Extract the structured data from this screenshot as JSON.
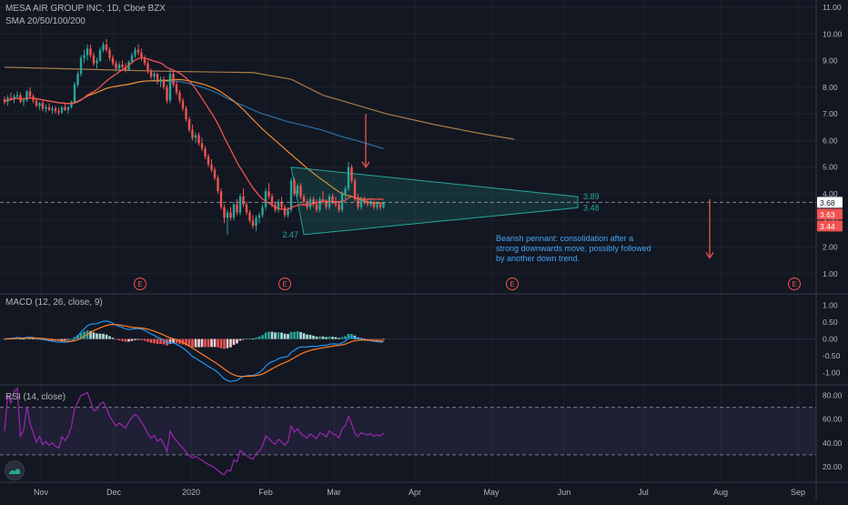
{
  "header": {
    "symbol_line": "MESA AIR GROUP INC, 1D, Cboe BZX",
    "sma_line": "SMA 20/50/100/200"
  },
  "colors": {
    "background": "#131722",
    "grid": "#1e222d",
    "up_candle": "#26a69a",
    "down_candle": "#ef5350",
    "sma20": "#ef5350",
    "sma50": "#f28c28",
    "sma100": "#2a6fa8",
    "sma200": "#b8864f",
    "pennant_fill": "#26a69a",
    "macd_line": "#2196f3",
    "signal_line": "#ff7f27",
    "rsi_line": "#9c27b0",
    "rsi_band": "#7e57c2",
    "annotation_text": "#42a5f5",
    "arrow": "#ef5350"
  },
  "price_labels": {
    "current": "3.68",
    "sma_a": "3.63",
    "sma_b": "3.44",
    "pennant_top": "3.89",
    "pennant_bottom": "3.48",
    "pennant_low_label": "2.47"
  },
  "annotation": {
    "line1": "Bearish pennant: consolidation after a",
    "line2": "strong downwards move, possibly followed",
    "line3": "by another down trend."
  },
  "earnings_marker": "E",
  "macd": {
    "label": "MACD (12, 26, close, 9)"
  },
  "rsi": {
    "label": "RSI (14, close)"
  },
  "chart_data": {
    "type": "candlestick",
    "x_labels": [
      "Nov",
      "Dec",
      "2020",
      "Feb",
      "Mar",
      "Apr",
      "May",
      "Jun",
      "Jul",
      "Aug",
      "Sep"
    ],
    "price_axis": [
      "11.00",
      "10.00",
      "9.00",
      "8.00",
      "7.00",
      "6.00",
      "5.00",
      "4.00",
      "3.00",
      "2.00",
      "1.00"
    ],
    "price_range": [
      0.45,
      11.0
    ],
    "ohlc": [
      [
        7.55,
        7.65,
        7.35,
        7.45
      ],
      [
        7.45,
        7.7,
        7.3,
        7.6
      ],
      [
        7.6,
        7.8,
        7.5,
        7.55
      ],
      [
        7.55,
        7.75,
        7.4,
        7.65
      ],
      [
        7.65,
        7.85,
        7.55,
        7.7
      ],
      [
        7.7,
        7.8,
        7.4,
        7.45
      ],
      [
        7.45,
        7.6,
        7.3,
        7.5
      ],
      [
        7.5,
        7.9,
        7.45,
        7.85
      ],
      [
        7.85,
        8.0,
        7.6,
        7.65
      ],
      [
        7.65,
        7.75,
        7.4,
        7.5
      ],
      [
        7.5,
        7.6,
        7.25,
        7.3
      ],
      [
        7.3,
        7.45,
        7.15,
        7.4
      ],
      [
        7.4,
        7.5,
        7.1,
        7.2
      ],
      [
        7.2,
        7.35,
        7.05,
        7.25
      ],
      [
        7.25,
        7.4,
        7.1,
        7.15
      ],
      [
        7.15,
        7.3,
        7.0,
        7.2
      ],
      [
        7.2,
        7.3,
        7.0,
        7.1
      ],
      [
        7.1,
        7.25,
        6.95,
        7.05
      ],
      [
        7.05,
        7.3,
        7.0,
        7.25
      ],
      [
        7.25,
        7.4,
        7.1,
        7.15
      ],
      [
        7.15,
        7.3,
        7.0,
        7.25
      ],
      [
        7.25,
        7.5,
        7.2,
        7.45
      ],
      [
        7.45,
        8.2,
        7.4,
        8.1
      ],
      [
        8.1,
        8.6,
        8.0,
        8.5
      ],
      [
        8.5,
        9.2,
        8.4,
        9.1
      ],
      [
        9.1,
        9.4,
        8.9,
        9.2
      ],
      [
        9.2,
        9.6,
        9.0,
        9.45
      ],
      [
        9.45,
        9.6,
        9.1,
        9.2
      ],
      [
        9.2,
        9.3,
        8.8,
        8.9
      ],
      [
        8.9,
        9.1,
        8.7,
        9.0
      ],
      [
        9.0,
        9.5,
        8.95,
        9.4
      ],
      [
        9.4,
        9.7,
        9.3,
        9.6
      ],
      [
        9.6,
        9.8,
        9.3,
        9.4
      ],
      [
        9.4,
        9.5,
        9.0,
        9.1
      ],
      [
        9.1,
        9.2,
        8.8,
        8.9
      ],
      [
        8.9,
        9.0,
        8.6,
        8.7
      ],
      [
        8.7,
        8.95,
        8.6,
        8.85
      ],
      [
        8.85,
        9.0,
        8.7,
        8.75
      ],
      [
        8.75,
        8.9,
        8.55,
        8.65
      ],
      [
        8.65,
        9.0,
        8.6,
        8.95
      ],
      [
        8.95,
        9.3,
        8.9,
        9.2
      ],
      [
        9.2,
        9.5,
        9.1,
        9.4
      ],
      [
        9.4,
        9.6,
        9.2,
        9.3
      ],
      [
        9.3,
        9.45,
        9.0,
        9.1
      ],
      [
        9.1,
        9.2,
        8.8,
        8.9
      ],
      [
        8.9,
        9.0,
        8.5,
        8.6
      ],
      [
        8.6,
        8.7,
        8.3,
        8.4
      ],
      [
        8.4,
        8.6,
        8.2,
        8.5
      ],
      [
        8.5,
        8.55,
        8.1,
        8.2
      ],
      [
        8.2,
        8.4,
        8.0,
        8.3
      ],
      [
        8.3,
        8.4,
        7.9,
        8.0
      ],
      [
        8.0,
        8.1,
        7.4,
        7.5
      ],
      [
        7.5,
        8.7,
        7.4,
        8.5
      ],
      [
        8.5,
        8.6,
        8.0,
        8.1
      ],
      [
        8.1,
        8.2,
        7.7,
        7.8
      ],
      [
        7.8,
        7.9,
        7.4,
        7.5
      ],
      [
        7.5,
        7.6,
        7.1,
        7.2
      ],
      [
        7.2,
        7.3,
        6.7,
        6.8
      ],
      [
        6.8,
        6.9,
        6.3,
        6.4
      ],
      [
        6.4,
        6.6,
        6.0,
        6.1
      ],
      [
        6.1,
        6.3,
        5.9,
        6.2
      ],
      [
        6.2,
        6.3,
        5.8,
        5.9
      ],
      [
        5.9,
        6.1,
        5.6,
        5.7
      ],
      [
        5.7,
        5.8,
        5.3,
        5.4
      ],
      [
        5.4,
        5.5,
        5.0,
        5.1
      ],
      [
        5.1,
        5.3,
        4.8,
        4.9
      ],
      [
        4.9,
        5.0,
        4.5,
        4.6
      ],
      [
        4.6,
        4.7,
        4.0,
        4.1
      ],
      [
        4.1,
        4.2,
        3.4,
        3.5
      ],
      [
        3.5,
        3.6,
        2.9,
        3.1
      ],
      [
        3.1,
        3.4,
        2.47,
        3.3
      ],
      [
        3.3,
        3.5,
        3.0,
        3.1
      ],
      [
        3.1,
        3.7,
        3.0,
        3.6
      ],
      [
        3.6,
        3.8,
        3.2,
        3.3
      ],
      [
        3.3,
        4.0,
        3.2,
        3.9
      ],
      [
        3.9,
        4.2,
        3.5,
        3.6
      ],
      [
        3.6,
        3.7,
        3.2,
        3.3
      ],
      [
        3.3,
        3.4,
        2.9,
        3.0
      ],
      [
        3.0,
        3.2,
        2.7,
        2.8
      ],
      [
        2.8,
        3.2,
        2.6,
        3.1
      ],
      [
        3.1,
        3.3,
        2.9,
        3.2
      ],
      [
        3.2,
        3.6,
        3.1,
        3.5
      ],
      [
        3.5,
        4.2,
        3.4,
        4.1
      ],
      [
        4.1,
        4.4,
        3.8,
        3.9
      ],
      [
        3.9,
        4.0,
        3.5,
        3.6
      ],
      [
        3.6,
        3.7,
        3.3,
        3.4
      ],
      [
        3.4,
        3.8,
        3.3,
        3.7
      ],
      [
        3.7,
        3.9,
        3.4,
        3.5
      ],
      [
        3.5,
        3.6,
        3.1,
        3.2
      ],
      [
        3.2,
        3.5,
        3.1,
        3.4
      ],
      [
        3.4,
        4.6,
        3.3,
        4.5
      ],
      [
        4.5,
        4.6,
        3.9,
        4.0
      ],
      [
        4.0,
        4.4,
        3.9,
        4.3
      ],
      [
        4.3,
        4.4,
        3.8,
        3.9
      ],
      [
        3.9,
        4.0,
        3.6,
        3.7
      ],
      [
        3.7,
        3.8,
        3.4,
        3.5
      ],
      [
        3.5,
        3.9,
        3.4,
        3.8
      ],
      [
        3.8,
        3.9,
        3.5,
        3.6
      ],
      [
        3.6,
        3.8,
        3.3,
        3.4
      ],
      [
        3.4,
        3.9,
        3.3,
        3.8
      ],
      [
        3.8,
        4.1,
        3.6,
        3.7
      ],
      [
        3.7,
        3.8,
        3.4,
        3.5
      ],
      [
        3.5,
        4.0,
        3.4,
        3.9
      ],
      [
        3.9,
        4.0,
        3.6,
        3.7
      ],
      [
        3.7,
        3.9,
        3.5,
        3.6
      ],
      [
        3.6,
        3.7,
        3.3,
        3.4
      ],
      [
        3.4,
        4.1,
        3.3,
        4.0
      ],
      [
        4.0,
        4.3,
        3.8,
        4.2
      ],
      [
        4.2,
        5.2,
        4.1,
        5.0
      ],
      [
        5.0,
        5.1,
        4.4,
        4.5
      ],
      [
        4.5,
        4.6,
        3.7,
        3.8
      ],
      [
        3.8,
        4.0,
        3.4,
        3.5
      ],
      [
        3.5,
        3.9,
        3.4,
        3.8
      ],
      [
        3.8,
        3.9,
        3.6,
        3.7
      ],
      [
        3.7,
        3.8,
        3.5,
        3.6
      ],
      [
        3.6,
        3.8,
        3.5,
        3.7
      ],
      [
        3.7,
        3.75,
        3.4,
        3.5
      ],
      [
        3.5,
        3.7,
        3.4,
        3.6
      ],
      [
        3.6,
        3.7,
        3.4,
        3.5
      ],
      [
        3.5,
        3.7,
        3.44,
        3.68
      ]
    ],
    "sma200": [
      [
        0,
        8.75
      ],
      [
        50,
        8.6
      ],
      [
        78,
        8.55
      ],
      [
        90,
        8.3
      ],
      [
        100,
        7.7
      ],
      [
        120,
        7.0
      ],
      [
        135,
        6.6
      ],
      [
        150,
        6.25
      ],
      [
        160,
        6.05
      ]
    ],
    "pennant": {
      "upper": [
        [
          90,
          5.0
        ],
        [
          180,
          3.89
        ]
      ],
      "lower": [
        [
          94,
          2.47
        ],
        [
          180,
          3.48
        ]
      ],
      "low_value": 2.47
    },
    "earnings_dates_index": [
      35,
      71,
      129,
      199
    ],
    "macd_axis": [
      "1.00",
      "0.50",
      "0.00",
      "-0.50",
      "-1.00"
    ],
    "macd_range": [
      -1.15,
      1.1
    ],
    "rsi_axis": [
      "80.00",
      "60.00",
      "40.00",
      "20.00"
    ],
    "rsi_range": [
      10,
      85
    ],
    "rsi_bands": [
      70,
      30
    ]
  }
}
